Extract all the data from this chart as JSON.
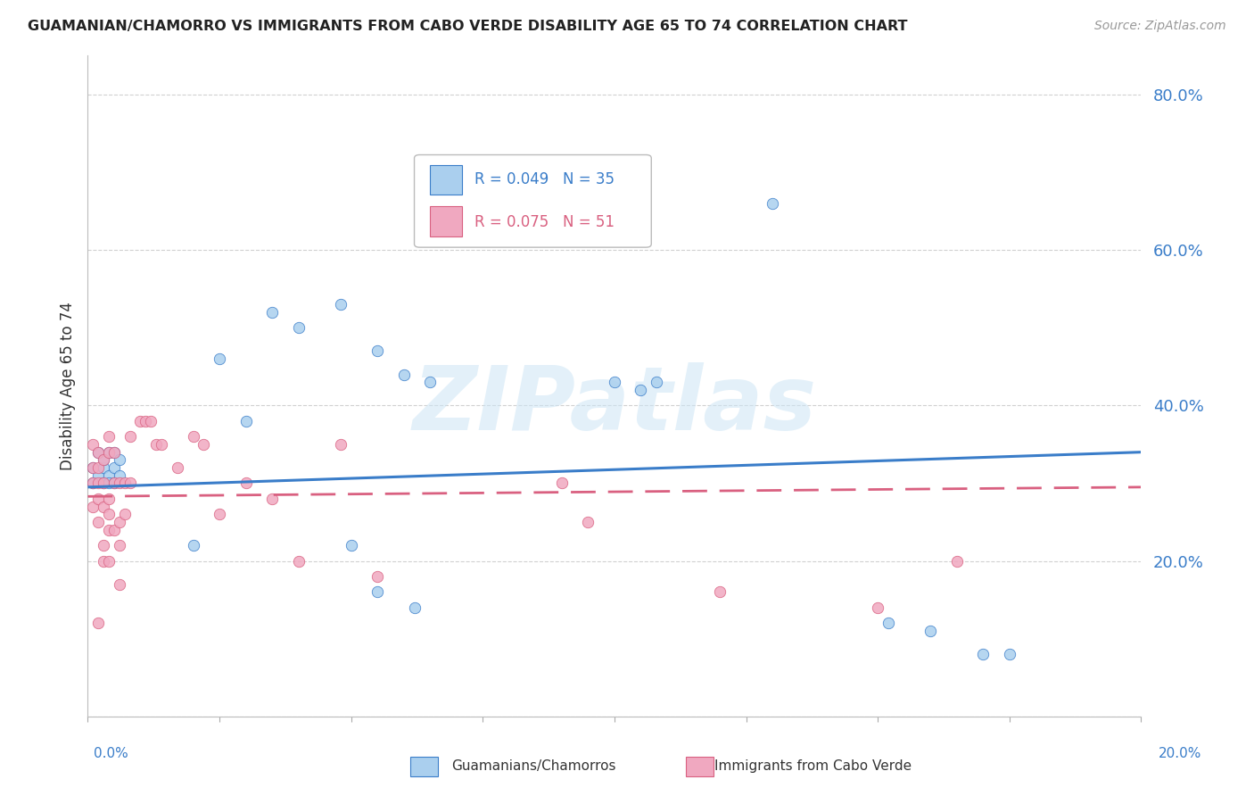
{
  "title": "GUAMANIAN/CHAMORRO VS IMMIGRANTS FROM CABO VERDE DISABILITY AGE 65 TO 74 CORRELATION CHART",
  "source": "Source: ZipAtlas.com",
  "ylabel": "Disability Age 65 to 74",
  "xlim": [
    0.0,
    0.2
  ],
  "ylim": [
    0.0,
    0.85
  ],
  "yticks": [
    0.0,
    0.2,
    0.4,
    0.6,
    0.8
  ],
  "ytick_labels": [
    "",
    "20.0%",
    "40.0%",
    "60.0%",
    "80.0%"
  ],
  "series1_color": "#aacfee",
  "series2_color": "#f0a8c0",
  "line1_color": "#3a7dc9",
  "line2_color": "#d96080",
  "legend1_text": "R = 0.049   N = 35",
  "legend2_text": "R = 0.075   N = 51",
  "bottom_label1": "Guamanians/Chamorros",
  "bottom_label2": "Immigrants from Cabo Verde",
  "blue_x": [
    0.001,
    0.001,
    0.002,
    0.002,
    0.003,
    0.003,
    0.003,
    0.004,
    0.004,
    0.004,
    0.005,
    0.005,
    0.005,
    0.006,
    0.006,
    0.02,
    0.025,
    0.03,
    0.035,
    0.04,
    0.048,
    0.055,
    0.06,
    0.065,
    0.1,
    0.105,
    0.108,
    0.13,
    0.152,
    0.16,
    0.17,
    0.175,
    0.05,
    0.055,
    0.062
  ],
  "blue_y": [
    0.3,
    0.32,
    0.31,
    0.34,
    0.32,
    0.3,
    0.33,
    0.34,
    0.31,
    0.3,
    0.32,
    0.34,
    0.3,
    0.33,
    0.31,
    0.22,
    0.46,
    0.38,
    0.52,
    0.5,
    0.53,
    0.47,
    0.44,
    0.43,
    0.43,
    0.42,
    0.43,
    0.66,
    0.12,
    0.11,
    0.08,
    0.08,
    0.22,
    0.16,
    0.14
  ],
  "pink_x": [
    0.001,
    0.001,
    0.001,
    0.001,
    0.002,
    0.002,
    0.002,
    0.002,
    0.002,
    0.002,
    0.003,
    0.003,
    0.003,
    0.003,
    0.003,
    0.004,
    0.004,
    0.004,
    0.004,
    0.004,
    0.004,
    0.005,
    0.005,
    0.005,
    0.006,
    0.006,
    0.006,
    0.006,
    0.007,
    0.007,
    0.008,
    0.008,
    0.01,
    0.011,
    0.012,
    0.013,
    0.014,
    0.017,
    0.02,
    0.022,
    0.025,
    0.03,
    0.035,
    0.04,
    0.048,
    0.055,
    0.09,
    0.095,
    0.12,
    0.15,
    0.165
  ],
  "pink_y": [
    0.27,
    0.3,
    0.32,
    0.35,
    0.25,
    0.28,
    0.3,
    0.32,
    0.34,
    0.12,
    0.2,
    0.22,
    0.27,
    0.3,
    0.33,
    0.2,
    0.24,
    0.26,
    0.28,
    0.34,
    0.36,
    0.24,
    0.3,
    0.34,
    0.17,
    0.22,
    0.25,
    0.3,
    0.26,
    0.3,
    0.3,
    0.36,
    0.38,
    0.38,
    0.38,
    0.35,
    0.35,
    0.32,
    0.36,
    0.35,
    0.26,
    0.3,
    0.28,
    0.2,
    0.35,
    0.18,
    0.3,
    0.25,
    0.16,
    0.14,
    0.2
  ],
  "blue_line_x": [
    0.0,
    0.2
  ],
  "blue_line_y": [
    0.295,
    0.34
  ],
  "pink_line_x": [
    0.0,
    0.2
  ],
  "pink_line_y": [
    0.283,
    0.295
  ],
  "watermark": "ZIPatlas"
}
